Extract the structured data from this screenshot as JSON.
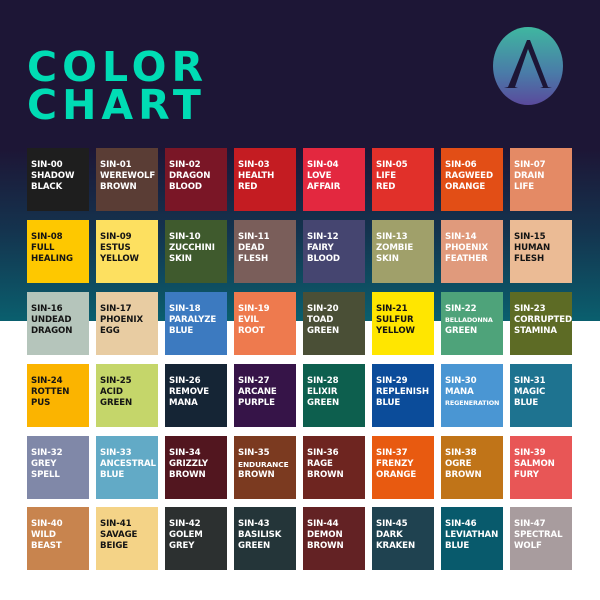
{
  "header": {
    "title_line1": "COLOR",
    "title_line2": "CHART",
    "logo": "A",
    "title_color": "#00dcb4"
  },
  "swatches": [
    {
      "code": "SIN-00",
      "name": [
        "SHADOW",
        "BLACK"
      ],
      "color": "#1e1e1e"
    },
    {
      "code": "SIN-01",
      "name": [
        "WEREWOLF",
        "BROWN"
      ],
      "color": "#5a3d35"
    },
    {
      "code": "SIN-02",
      "name": [
        "DRAGON",
        "BLOOD"
      ],
      "color": "#7a1626"
    },
    {
      "code": "SIN-03",
      "name": [
        "HEALTH",
        "RED"
      ],
      "color": "#c41c22"
    },
    {
      "code": "SIN-04",
      "name": [
        "LOVE",
        "AFFAIR"
      ],
      "color": "#e3283f"
    },
    {
      "code": "SIN-05",
      "name": [
        "LIFE",
        "RED"
      ],
      "color": "#e1302a"
    },
    {
      "code": "SIN-06",
      "name": [
        "RAGWEED",
        "ORANGE"
      ],
      "color": "#e24e16"
    },
    {
      "code": "SIN-07",
      "name": [
        "DRAIN",
        "LIFE"
      ],
      "color": "#e48a65"
    },
    {
      "code": "SIN-08",
      "name": [
        "FULL",
        "HEALING"
      ],
      "color": "#fec800",
      "dark": true
    },
    {
      "code": "SIN-09",
      "name": [
        "ESTUS",
        "YELLOW"
      ],
      "color": "#fde060",
      "dark": true
    },
    {
      "code": "SIN-10",
      "name": [
        "ZUCCHINI",
        "SKIN"
      ],
      "color": "#3f5a2d"
    },
    {
      "code": "SIN-11",
      "name": [
        "DEAD",
        "FLESH"
      ],
      "color": "#7a5e5a"
    },
    {
      "code": "SIN-12",
      "name": [
        "FAIRY",
        "BLOOD"
      ],
      "color": "#454570"
    },
    {
      "code": "SIN-13",
      "name": [
        "ZOMBIE",
        "SKIN"
      ],
      "color": "#a0a06a"
    },
    {
      "code": "SIN-14",
      "name": [
        "PHOENIX",
        "FEATHER"
      ],
      "color": "#e09a7c"
    },
    {
      "code": "SIN-15",
      "name": [
        "HUMAN",
        "FLESH"
      ],
      "color": "#ebbb95",
      "dark": true
    },
    {
      "code": "SIN-16",
      "name": [
        "UNDEAD",
        "DRAGON"
      ],
      "color": "#b5c5bb",
      "dark": true
    },
    {
      "code": "SIN-17",
      "name": [
        "PHOENIX",
        "EGG"
      ],
      "color": "#e8cca2",
      "dark": true
    },
    {
      "code": "SIN-18",
      "name": [
        "PARALYZE",
        "BLUE"
      ],
      "color": "#3c7ac0"
    },
    {
      "code": "SIN-19",
      "name": [
        "EVIL",
        "ROOT"
      ],
      "color": "#ee7a4e"
    },
    {
      "code": "SIN-20",
      "name": [
        "TOAD",
        "GREEN"
      ],
      "color": "#4a4f36"
    },
    {
      "code": "SIN-21",
      "name": [
        "SULFUR",
        "YELLOW"
      ],
      "color": "#ffe600",
      "dark": true
    },
    {
      "code": "SIN-22",
      "name": [
        "BELLADONNA",
        "GREEN"
      ],
      "color": "#4ea37a",
      "small": 0
    },
    {
      "code": "SIN-23",
      "name": [
        "CORRUPTED",
        "STAMINA"
      ],
      "color": "#5d6b25"
    },
    {
      "code": "SIN-24",
      "name": [
        "ROTTEN",
        "PUS"
      ],
      "color": "#fbb400",
      "dark": true
    },
    {
      "code": "SIN-25",
      "name": [
        "ACID",
        "GREEN"
      ],
      "color": "#c5d66a",
      "dark": true
    },
    {
      "code": "SIN-26",
      "name": [
        "REMOVE",
        "MANA"
      ],
      "color": "#152535"
    },
    {
      "code": "SIN-27",
      "name": [
        "ARCANE",
        "PURPLE"
      ],
      "color": "#361448"
    },
    {
      "code": "SIN-28",
      "name": [
        "ELIXIR",
        "GREEN"
      ],
      "color": "#0d5f4e"
    },
    {
      "code": "SIN-29",
      "name": [
        "REPLENISH",
        "BLUE"
      ],
      "color": "#0b4c9a"
    },
    {
      "code": "SIN-30",
      "name": [
        "MANA",
        "REGENERATION"
      ],
      "color": "#4a96d3",
      "small": 1
    },
    {
      "code": "SIN-31",
      "name": [
        "MAGIC",
        "BLUE"
      ],
      "color": "#1e7390"
    },
    {
      "code": "SIN-32",
      "name": [
        "GREY",
        "SPELL"
      ],
      "color": "#8088a8"
    },
    {
      "code": "SIN-33",
      "name": [
        "ANCESTRAL",
        "BLUE"
      ],
      "color": "#62aac6"
    },
    {
      "code": "SIN-34",
      "name": [
        "GRIZZLY",
        "BROWN"
      ],
      "color": "#52161f"
    },
    {
      "code": "SIN-35",
      "name": [
        "ENDURANCE",
        "BROWN"
      ],
      "color": "#7b3a20",
      "medium": 0
    },
    {
      "code": "SIN-36",
      "name": [
        "RAGE",
        "BROWN"
      ],
      "color": "#6e2520"
    },
    {
      "code": "SIN-37",
      "name": [
        "FRENZY",
        "ORANGE"
      ],
      "color": "#e85a10"
    },
    {
      "code": "SIN-38",
      "name": [
        "OGRE",
        "BROWN"
      ],
      "color": "#c07418"
    },
    {
      "code": "SIN-39",
      "name": [
        "SALMON",
        "FURY"
      ],
      "color": "#e85656"
    },
    {
      "code": "SIN-40",
      "name": [
        "WILD",
        "BEAST"
      ],
      "color": "#c8844e"
    },
    {
      "code": "SIN-41",
      "name": [
        "SAVAGE",
        "BEIGE"
      ],
      "color": "#f4d387",
      "dark": true
    },
    {
      "code": "SIN-42",
      "name": [
        "GOLEM",
        "GREY"
      ],
      "color": "#2c3030"
    },
    {
      "code": "SIN-43",
      "name": [
        "BASILISK",
        "GREEN"
      ],
      "color": "#243539"
    },
    {
      "code": "SIN-44",
      "name": [
        "DEMON",
        "BROWN"
      ],
      "color": "#632224"
    },
    {
      "code": "SIN-45",
      "name": [
        "DARK",
        "KRAKEN"
      ],
      "color": "#1f4250"
    },
    {
      "code": "SIN-46",
      "name": [
        "LEVIATHAN",
        "BLUE"
      ],
      "color": "#085a6c"
    },
    {
      "code": "SIN-47",
      "name": [
        "SPECTRAL",
        "WOLF"
      ],
      "color": "#a89c9e"
    }
  ]
}
